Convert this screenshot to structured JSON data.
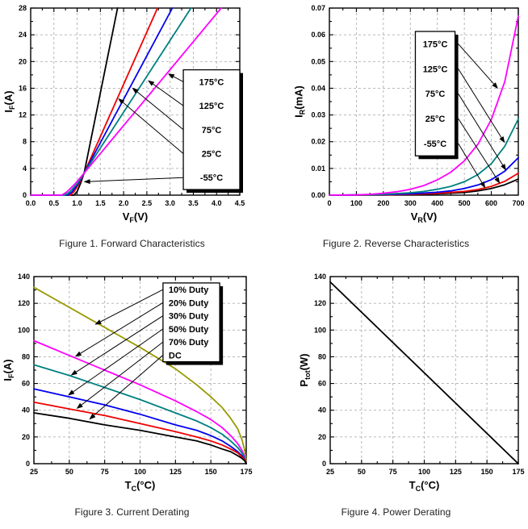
{
  "page": {
    "background": "#ffffff"
  },
  "chart_data": [
    {
      "type": "line",
      "caption": "Figure 1. Forward Characteristics",
      "xlabel": {
        "base": "V",
        "sub": "F",
        "unit": "(V)"
      },
      "ylabel": {
        "base": "I",
        "sub": "F",
        "unit": "(A)"
      },
      "xaxis": {
        "min": 0,
        "max": 4.5,
        "major_step": 0.5,
        "minor_step": 0.25,
        "decimals": 1
      },
      "yaxis": {
        "min": 0,
        "max": 28,
        "major_step": 4,
        "minor_step": 2,
        "decimals": 0
      },
      "grid": "dashed",
      "series": [
        {
          "name": "-55°C",
          "color": "#000000",
          "points": [
            [
              0,
              0
            ],
            [
              0.93,
              0
            ],
            [
              1.0,
              0.55
            ],
            [
              1.07,
              1.7
            ],
            [
              1.15,
              3.3
            ],
            [
              1.87,
              28
            ]
          ]
        },
        {
          "name": "25°C",
          "color": "#f00000",
          "points": [
            [
              0,
              0
            ],
            [
              0.85,
              0
            ],
            [
              0.93,
              0.5
            ],
            [
              1.04,
              1.7
            ],
            [
              1.15,
              3.3
            ],
            [
              2.73,
              28
            ]
          ]
        },
        {
          "name": "75°C",
          "color": "#0000f0",
          "points": [
            [
              0,
              0
            ],
            [
              0.8,
              0
            ],
            [
              0.89,
              0.5
            ],
            [
              1.02,
              1.7
            ],
            [
              1.15,
              3.3
            ],
            [
              3.05,
              28
            ]
          ]
        },
        {
          "name": "125°C",
          "color": "#008080",
          "points": [
            [
              0,
              0
            ],
            [
              0.74,
              0
            ],
            [
              0.84,
              0.5
            ],
            [
              1.0,
              1.7
            ],
            [
              1.15,
              3.3
            ],
            [
              3.45,
              28
            ]
          ]
        },
        {
          "name": "175°C",
          "color": "#ff00ff",
          "points": [
            [
              0,
              0
            ],
            [
              0.67,
              0
            ],
            [
              0.78,
              0.5
            ],
            [
              0.97,
              1.8
            ],
            [
              1.15,
              3.3
            ],
            [
              4.1,
              28
            ]
          ]
        }
      ],
      "legend": {
        "position": {
          "x1": 0.73,
          "y1": 0.33,
          "x2": 1.0,
          "y2": 0.97
        },
        "arrow_side": "left",
        "text_align": "center",
        "items": [
          {
            "label": "175°C",
            "arrow_target": [
              2.95,
              18.2
            ]
          },
          {
            "label": "125°C",
            "arrow_target": [
              2.52,
              17.2
            ]
          },
          {
            "label": "75°C",
            "arrow_target": [
              2.18,
              16.1
            ]
          },
          {
            "label": "25°C",
            "arrow_target": [
              1.88,
              14.5
            ]
          },
          {
            "label": "-55°C",
            "arrow_target": [
              1.14,
              2.0
            ]
          }
        ]
      }
    },
    {
      "type": "line",
      "caption": "Figure 2. Reverse Characteristics",
      "xlabel": {
        "base": "V",
        "sub": "R",
        "unit": "(V)"
      },
      "ylabel": {
        "base": "I",
        "sub": "R",
        "unit": "(mA)"
      },
      "xaxis": {
        "min": 0,
        "max": 700,
        "major_step": 100,
        "minor_step": 50,
        "decimals": 0
      },
      "yaxis": {
        "min": 0,
        "max": 0.07,
        "major_step": 0.01,
        "minor_step": 0.005,
        "decimals": 2
      },
      "grid": "dashed",
      "series": [
        {
          "name": "-55°C",
          "color": "#000000",
          "points": [
            [
              0,
              0
            ],
            [
              200,
              0.0001
            ],
            [
              300,
              0.0002
            ],
            [
              400,
              0.0005
            ],
            [
              500,
              0.001
            ],
            [
              550,
              0.0016
            ],
            [
              600,
              0.0025
            ],
            [
              650,
              0.0039
            ],
            [
              700,
              0.006
            ]
          ]
        },
        {
          "name": "25°C",
          "color": "#f00000",
          "points": [
            [
              0,
              0
            ],
            [
              200,
              0.0001
            ],
            [
              300,
              0.0003
            ],
            [
              400,
              0.0007
            ],
            [
              500,
              0.0014
            ],
            [
              550,
              0.0021
            ],
            [
              600,
              0.0033
            ],
            [
              650,
              0.0052
            ],
            [
              700,
              0.0082
            ]
          ]
        },
        {
          "name": "75°C",
          "color": "#0000f0",
          "points": [
            [
              0,
              0
            ],
            [
              200,
              0.0002
            ],
            [
              300,
              0.0005
            ],
            [
              400,
              0.0011
            ],
            [
              450,
              0.0016
            ],
            [
              500,
              0.0025
            ],
            [
              550,
              0.0038
            ],
            [
              600,
              0.0058
            ],
            [
              650,
              0.009
            ],
            [
              700,
              0.014
            ]
          ]
        },
        {
          "name": "125°C",
          "color": "#008080",
          "points": [
            [
              0,
              0
            ],
            [
              150,
              0.0001
            ],
            [
              200,
              0.0003
            ],
            [
              300,
              0.0009
            ],
            [
              350,
              0.0014
            ],
            [
              400,
              0.0022
            ],
            [
              450,
              0.0033
            ],
            [
              500,
              0.005
            ],
            [
              550,
              0.0077
            ],
            [
              600,
              0.0118
            ],
            [
              650,
              0.0183
            ],
            [
              700,
              0.0285
            ]
          ]
        },
        {
          "name": "175°C",
          "color": "#ff00ff",
          "points": [
            [
              0,
              0
            ],
            [
              100,
              0.0001
            ],
            [
              150,
              0.0003
            ],
            [
              200,
              0.0007
            ],
            [
              250,
              0.0013
            ],
            [
              300,
              0.0022
            ],
            [
              350,
              0.0036
            ],
            [
              400,
              0.0057
            ],
            [
              450,
              0.0086
            ],
            [
              500,
              0.0128
            ],
            [
              550,
              0.019
            ],
            [
              600,
              0.0283
            ],
            [
              650,
              0.0425
            ],
            [
              700,
              0.067
            ]
          ]
        }
      ],
      "legend": {
        "position": {
          "x1": 0.455,
          "y1": 0.125,
          "x2": 0.665,
          "y2": 0.79
        },
        "arrow_side": "right",
        "text_align": "center",
        "items": [
          {
            "label": "175°C",
            "arrow_target": [
              625,
              0.0398
            ]
          },
          {
            "label": "125°C",
            "arrow_target": [
              650,
              0.0195
            ]
          },
          {
            "label": "75°C",
            "arrow_target": [
              655,
              0.0092
            ]
          },
          {
            "label": "25°C",
            "arrow_target": [
              632,
              0.0043
            ]
          },
          {
            "label": "-55°C",
            "arrow_target": [
              578,
              0.0026
            ]
          }
        ]
      }
    },
    {
      "type": "line",
      "caption": "Figure 3. Current Derating",
      "xlabel": {
        "base": "T",
        "sub": "C",
        "unit": "(°C)"
      },
      "ylabel": {
        "base": "I",
        "sub": "F",
        "unit": "(A)"
      },
      "xaxis": {
        "min": 25,
        "max": 175,
        "major_step": 25,
        "minor_step": 12.5,
        "decimals": 0
      },
      "yaxis": {
        "min": 0,
        "max": 140,
        "major_step": 20,
        "minor_step": 10,
        "decimals": 0
      },
      "grid": "dashed",
      "series": [
        {
          "name": "10% Duty",
          "color": "#999900",
          "points": [
            [
              25,
              132
            ],
            [
              50,
              117
            ],
            [
              75,
              102
            ],
            [
              100,
              87
            ],
            [
              125,
              71
            ],
            [
              140,
              59
            ],
            [
              150,
              50
            ],
            [
              158,
              42
            ],
            [
              164,
              34
            ],
            [
              169,
              26
            ],
            [
              172,
              18
            ],
            [
              174,
              10
            ],
            [
              175,
              0
            ]
          ]
        },
        {
          "name": "20% Duty",
          "color": "#ff00ff",
          "points": [
            [
              25,
              92
            ],
            [
              50,
              81
            ],
            [
              75,
              70
            ],
            [
              100,
              59
            ],
            [
              125,
              47
            ],
            [
              140,
              39
            ],
            [
              150,
              33
            ],
            [
              158,
              27
            ],
            [
              164,
              21
            ],
            [
              169,
              15
            ],
            [
              172,
              10
            ],
            [
              174,
              5
            ],
            [
              175,
              0
            ]
          ]
        },
        {
          "name": "30% Duty",
          "color": "#008080",
          "points": [
            [
              25,
              74
            ],
            [
              50,
              66
            ],
            [
              75,
              57
            ],
            [
              100,
              48
            ],
            [
              125,
              38
            ],
            [
              140,
              32
            ],
            [
              150,
              27
            ],
            [
              158,
              22
            ],
            [
              164,
              17
            ],
            [
              169,
              12
            ],
            [
              172,
              8
            ],
            [
              174,
              4
            ],
            [
              175,
              0
            ]
          ]
        },
        {
          "name": "50% Duty",
          "color": "#0000f0",
          "points": [
            [
              25,
              56
            ],
            [
              50,
              50
            ],
            [
              75,
              44
            ],
            [
              100,
              37
            ],
            [
              125,
              29
            ],
            [
              140,
              25
            ],
            [
              150,
              21
            ],
            [
              158,
              17
            ],
            [
              164,
              13
            ],
            [
              169,
              9
            ],
            [
              172,
              6
            ],
            [
              174,
              3
            ],
            [
              175,
              0
            ]
          ]
        },
        {
          "name": "70% Duty",
          "color": "#f00000",
          "points": [
            [
              25,
              46
            ],
            [
              50,
              41
            ],
            [
              75,
              36
            ],
            [
              100,
              30
            ],
            [
              125,
              24
            ],
            [
              140,
              20
            ],
            [
              150,
              17
            ],
            [
              158,
              14
            ],
            [
              164,
              11
            ],
            [
              169,
              8
            ],
            [
              172,
              5
            ],
            [
              174,
              3
            ],
            [
              175,
              0
            ]
          ]
        },
        {
          "name": "DC",
          "color": "#000000",
          "points": [
            [
              25,
              38
            ],
            [
              50,
              34
            ],
            [
              75,
              29
            ],
            [
              100,
              25
            ],
            [
              125,
              20
            ],
            [
              140,
              17
            ],
            [
              150,
              14
            ],
            [
              158,
              11
            ],
            [
              164,
              9
            ],
            [
              169,
              6
            ],
            [
              172,
              4
            ],
            [
              174,
              2
            ],
            [
              175,
              0
            ]
          ]
        }
      ],
      "legend": {
        "position": {
          "x1": 0.608,
          "y1": 0.034,
          "x2": 0.875,
          "y2": 0.455
        },
        "arrow_side": "left",
        "text_align": "left",
        "items": [
          {
            "label": "10% Duty",
            "arrow_target": [
              68,
              104
            ]
          },
          {
            "label": "20% Duty",
            "arrow_target": [
              54,
              80
            ]
          },
          {
            "label": "30% Duty",
            "arrow_target": [
              51,
              66
            ]
          },
          {
            "label": "50% Duty",
            "arrow_target": [
              49,
              51
            ]
          },
          {
            "label": "70% Duty",
            "arrow_target": [
              55,
              41
            ]
          },
          {
            "label": "DC",
            "arrow_target": [
              64,
              33
            ]
          }
        ]
      }
    },
    {
      "type": "line",
      "caption": "Figure 4. Power Derating",
      "xlabel": {
        "base": "T",
        "sub": "C",
        "unit": "(°C)"
      },
      "ylabel": {
        "base": "P",
        "sub": "tot",
        "unit": "(W)"
      },
      "xaxis": {
        "min": 25,
        "max": 175,
        "major_step": 25,
        "minor_step": 12.5,
        "decimals": 0
      },
      "yaxis": {
        "min": 0,
        "max": 140,
        "major_step": 20,
        "minor_step": 10,
        "decimals": 0
      },
      "grid": "dashed",
      "series": [
        {
          "name": "Ptot",
          "color": "#000000",
          "points": [
            [
              25,
              136
            ],
            [
              175,
              0
            ]
          ]
        }
      ],
      "legend": null
    }
  ]
}
